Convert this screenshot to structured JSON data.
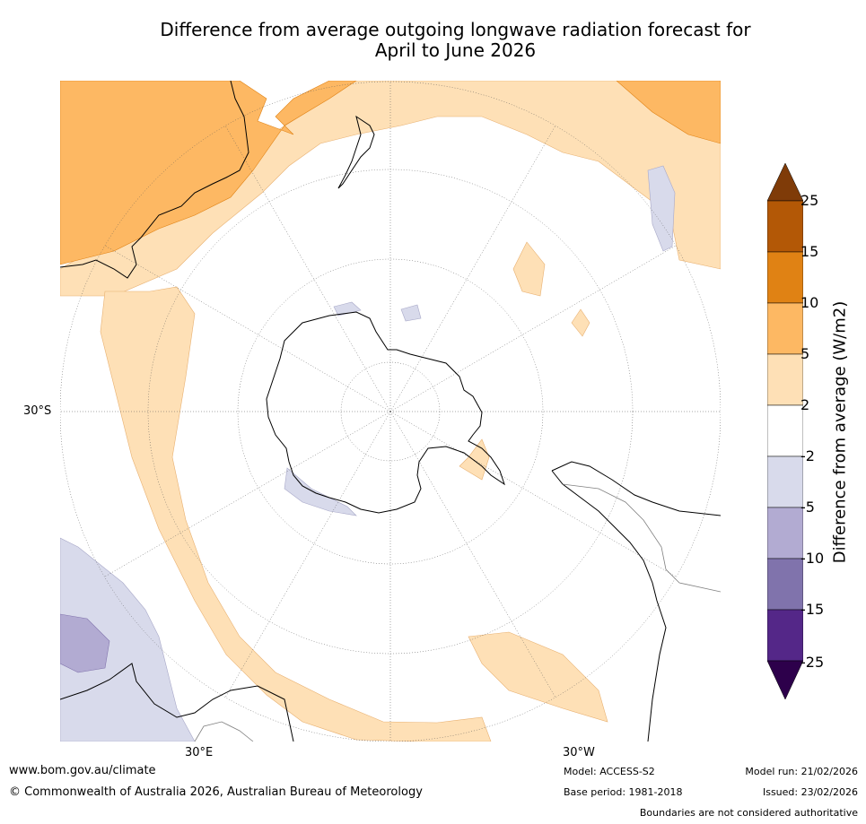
{
  "title": {
    "line1": "Difference from average outgoing longwave radiation forecast for",
    "line2": "April to June 2026"
  },
  "map": {
    "lat_label": "30°S",
    "lon_labels": {
      "east": "30°E",
      "west": "30°W"
    },
    "projection": "south polar stereographic"
  },
  "legend": {
    "label": "Difference from average (W/m2)",
    "ticks": [
      "25",
      "15",
      "10",
      "5",
      "2",
      "-2",
      "-5",
      "-10",
      "-15",
      "-25"
    ],
    "bins": [
      {
        "range": "> 25",
        "color": "#7f3b08"
      },
      {
        "range": "15 to 25",
        "color": "#b35806"
      },
      {
        "range": "10 to 15",
        "color": "#e08214"
      },
      {
        "range": "5 to 10",
        "color": "#fdb863"
      },
      {
        "range": "2 to 5",
        "color": "#fee0b6"
      },
      {
        "range": "-2 to 2",
        "color": "#ffffff"
      },
      {
        "range": "-5 to -2",
        "color": "#d8daeb"
      },
      {
        "range": "-10 to -5",
        "color": "#b2abd2"
      },
      {
        "range": "-15 to -10",
        "color": "#8073ac"
      },
      {
        "range": "-25 to -15",
        "color": "#542788"
      },
      {
        "range": "< -25",
        "color": "#2d004b"
      }
    ]
  },
  "footer": {
    "website": "www.bom.gov.au/climate",
    "copyright": "© Commonwealth of Australia 2026, Australian Bureau of Meteorology",
    "model": "Model: ACCESS-S2",
    "base_period": "Base period: 1981-2018",
    "model_run": "Model run: 21/02/2026",
    "issued": "Issued: 23/02/2026",
    "disclaimer": "Boundaries are not considered authoritative"
  },
  "colors": {
    "land_outline": "#000000",
    "graticule": "#555555"
  }
}
